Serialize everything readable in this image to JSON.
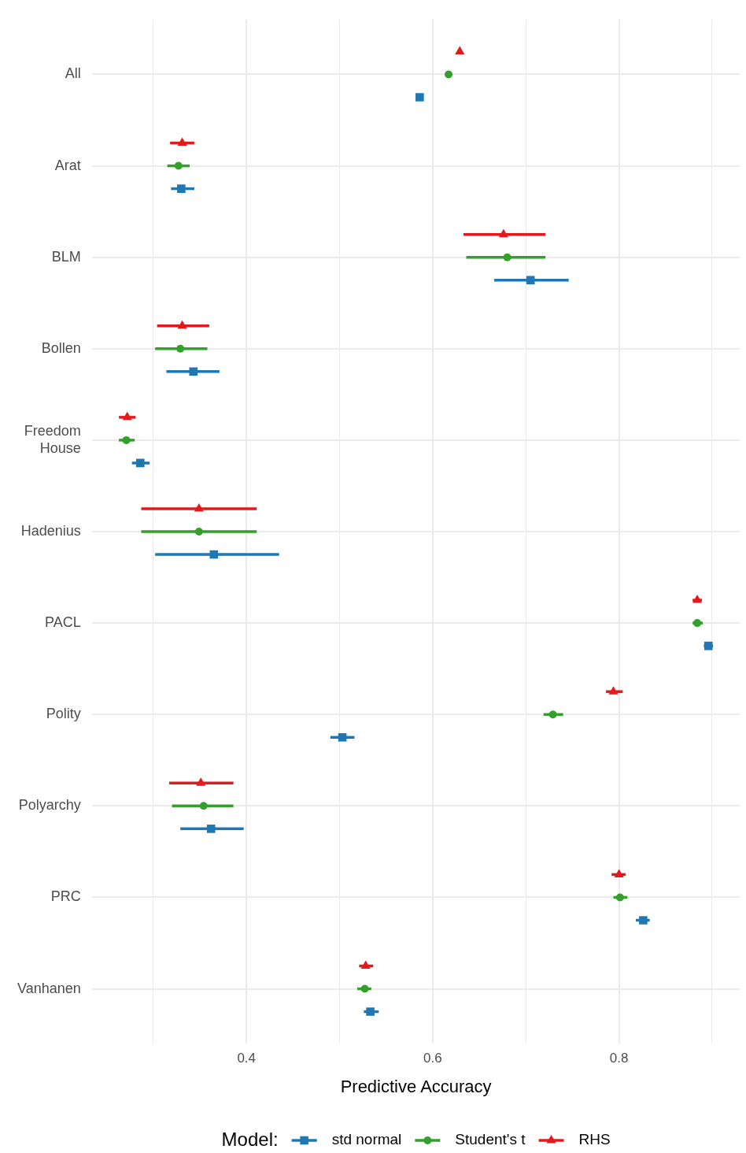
{
  "chart_data": {
    "type": "scatter",
    "orientation": "horizontal",
    "xlabel": "Predictive Accuracy",
    "legend": "bottom",
    "legend_title": "Model:",
    "grid": true,
    "categories": [
      "All",
      "Arat",
      "BLM",
      "Bollen",
      "Freedom House",
      "Hadenius",
      "PACL",
      "Polity",
      "Polyarchy",
      "PRC",
      "Vanhanen"
    ],
    "xlim": [
      0.234,
      0.93
    ],
    "xticks": [
      {
        "value": 0.3,
        "label": null
      },
      0.4,
      {
        "value": 0.5,
        "label": null
      },
      0.6,
      {
        "value": 0.7,
        "label": null
      },
      0.8,
      {
        "value": 0.9,
        "label": null
      }
    ],
    "series": [
      {
        "name": "std normal",
        "color": "#1f78b4",
        "marker": "square",
        "values": [
          0.586,
          0.33,
          0.705,
          0.343,
          0.286,
          0.365,
          0.896,
          0.503,
          0.362,
          0.826,
          0.533
        ],
        "errors": [
          null,
          [
            0.319,
            0.344
          ],
          [
            0.666,
            0.746
          ],
          [
            0.314,
            0.371
          ],
          [
            0.277,
            0.296
          ],
          [
            0.302,
            0.435
          ],
          [
            0.891,
            0.901
          ],
          [
            0.49,
            0.516
          ],
          [
            0.329,
            0.397
          ],
          [
            0.818,
            0.833
          ],
          [
            0.526,
            0.542
          ]
        ]
      },
      {
        "name": "Student's t",
        "color": "#33a02c",
        "marker": "circle",
        "values": [
          0.617,
          0.327,
          0.68,
          0.329,
          0.271,
          0.349,
          0.884,
          0.729,
          0.354,
          0.801,
          0.527
        ],
        "errors": [
          null,
          [
            0.315,
            0.339
          ],
          [
            0.636,
            0.721
          ],
          [
            0.302,
            0.358
          ],
          [
            0.263,
            0.28
          ],
          [
            0.287,
            0.411
          ],
          [
            0.879,
            0.89
          ],
          [
            0.719,
            0.74
          ],
          [
            0.32,
            0.386
          ],
          [
            0.794,
            0.809
          ],
          [
            0.519,
            0.534
          ]
        ]
      },
      {
        "name": "RHS",
        "color": "#e31a1c",
        "marker": "triangle",
        "values": [
          0.629,
          0.331,
          0.676,
          0.331,
          0.272,
          0.349,
          0.884,
          0.794,
          0.351,
          0.8,
          0.528
        ],
        "errors": [
          null,
          [
            0.318,
            0.344
          ],
          [
            0.633,
            0.721
          ],
          [
            0.304,
            0.36
          ],
          [
            0.263,
            0.281
          ],
          [
            0.287,
            0.411
          ],
          [
            0.879,
            0.889
          ],
          [
            0.786,
            0.804
          ],
          [
            0.317,
            0.386
          ],
          [
            0.792,
            0.807
          ],
          [
            0.521,
            0.536
          ]
        ]
      }
    ]
  }
}
